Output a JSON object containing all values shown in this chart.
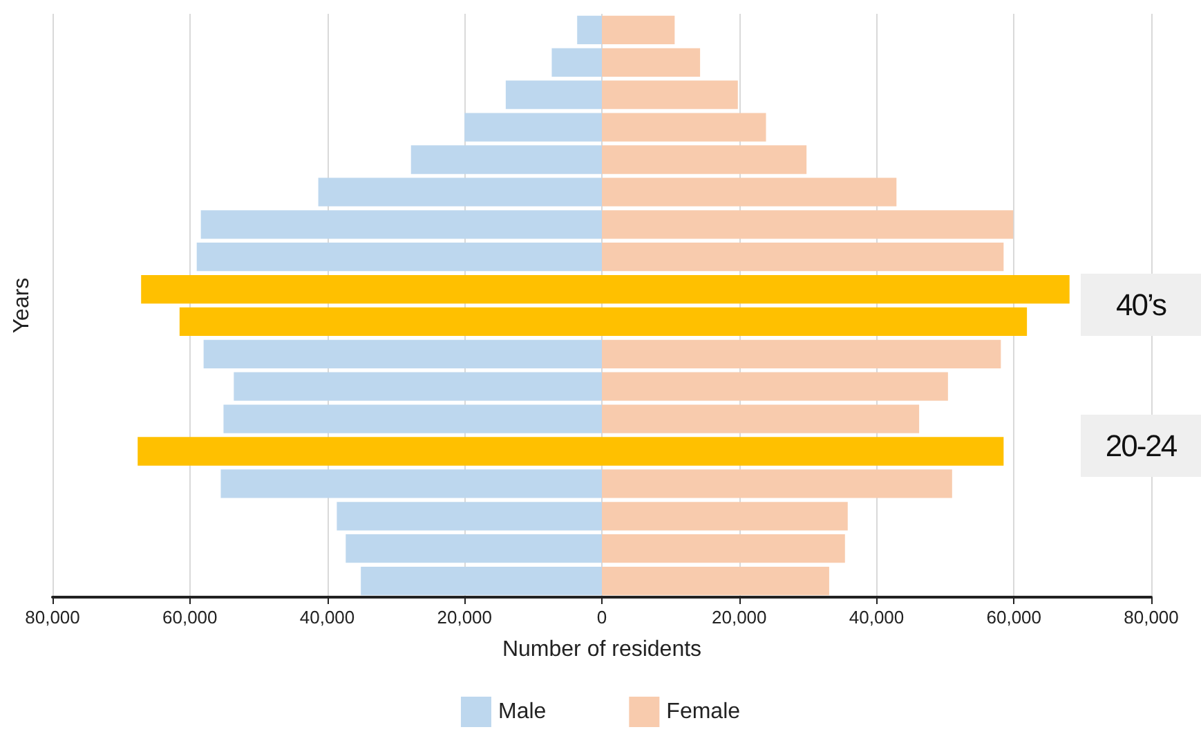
{
  "chart_data": {
    "type": "bar",
    "orientation": "horizontal",
    "stacked": true,
    "xlabel": "Number of residents",
    "ylabel": "Years",
    "categories": [
      null,
      null,
      null,
      null,
      null,
      null,
      null,
      null,
      null,
      null,
      null,
      null,
      null,
      null,
      null,
      null,
      null,
      null
    ],
    "series": [
      {
        "name": "Male",
        "color": "#bdd7ee",
        "values": [
          -3600,
          -7300,
          -14000,
          -20000,
          -27800,
          -41300,
          -58400,
          -59000,
          -67100,
          -61500,
          -58000,
          -53600,
          -55100,
          -67600,
          -55500,
          -38600,
          -37300,
          -35100
        ],
        "colors": [
          "#bdd7ee",
          "#bdd7ee",
          "#bdd7ee",
          "#bdd7ee",
          "#bdd7ee",
          "#bdd7ee",
          "#bdd7ee",
          "#bdd7ee",
          "#ffc000",
          "#ffc000",
          "#bdd7ee",
          "#bdd7ee",
          "#bdd7ee",
          "#ffc000",
          "#bdd7ee",
          "#bdd7ee",
          "#bdd7ee",
          "#bdd7ee"
        ]
      },
      {
        "name": "Female",
        "color": "#f8cbad",
        "values": [
          10600,
          14300,
          19800,
          23900,
          29800,
          42900,
          59900,
          58500,
          68100,
          61900,
          58100,
          50400,
          46200,
          58500,
          51000,
          35800,
          35400,
          33100
        ],
        "colors": [
          "#f8cbad",
          "#f8cbad",
          "#f8cbad",
          "#f8cbad",
          "#f8cbad",
          "#f8cbad",
          "#f8cbad",
          "#f8cbad",
          "#ffc000",
          "#ffc000",
          "#f8cbad",
          "#f8cbad",
          "#f8cbad",
          "#ffc000",
          "#f8cbad",
          "#f8cbad",
          "#f8cbad",
          "#f8cbad"
        ]
      }
    ],
    "xlim": [
      -80000,
      80000
    ],
    "xticks": [
      {
        "value": -80000,
        "label": "80,000"
      },
      {
        "value": -60000,
        "label": "60,000"
      },
      {
        "value": -40000,
        "label": "40,000"
      },
      {
        "value": -20000,
        "label": "20,000"
      },
      0,
      {
        "value": 20000,
        "label": "20,000"
      },
      {
        "value": 40000,
        "label": "40,000"
      },
      {
        "value": 60000,
        "label": "60,000"
      },
      {
        "value": 80000,
        "label": "80,000"
      }
    ],
    "grid": "x",
    "legend": "bottom",
    "tick_labels": "x",
    "annotations": [
      "40’s",
      "20-24"
    ]
  }
}
